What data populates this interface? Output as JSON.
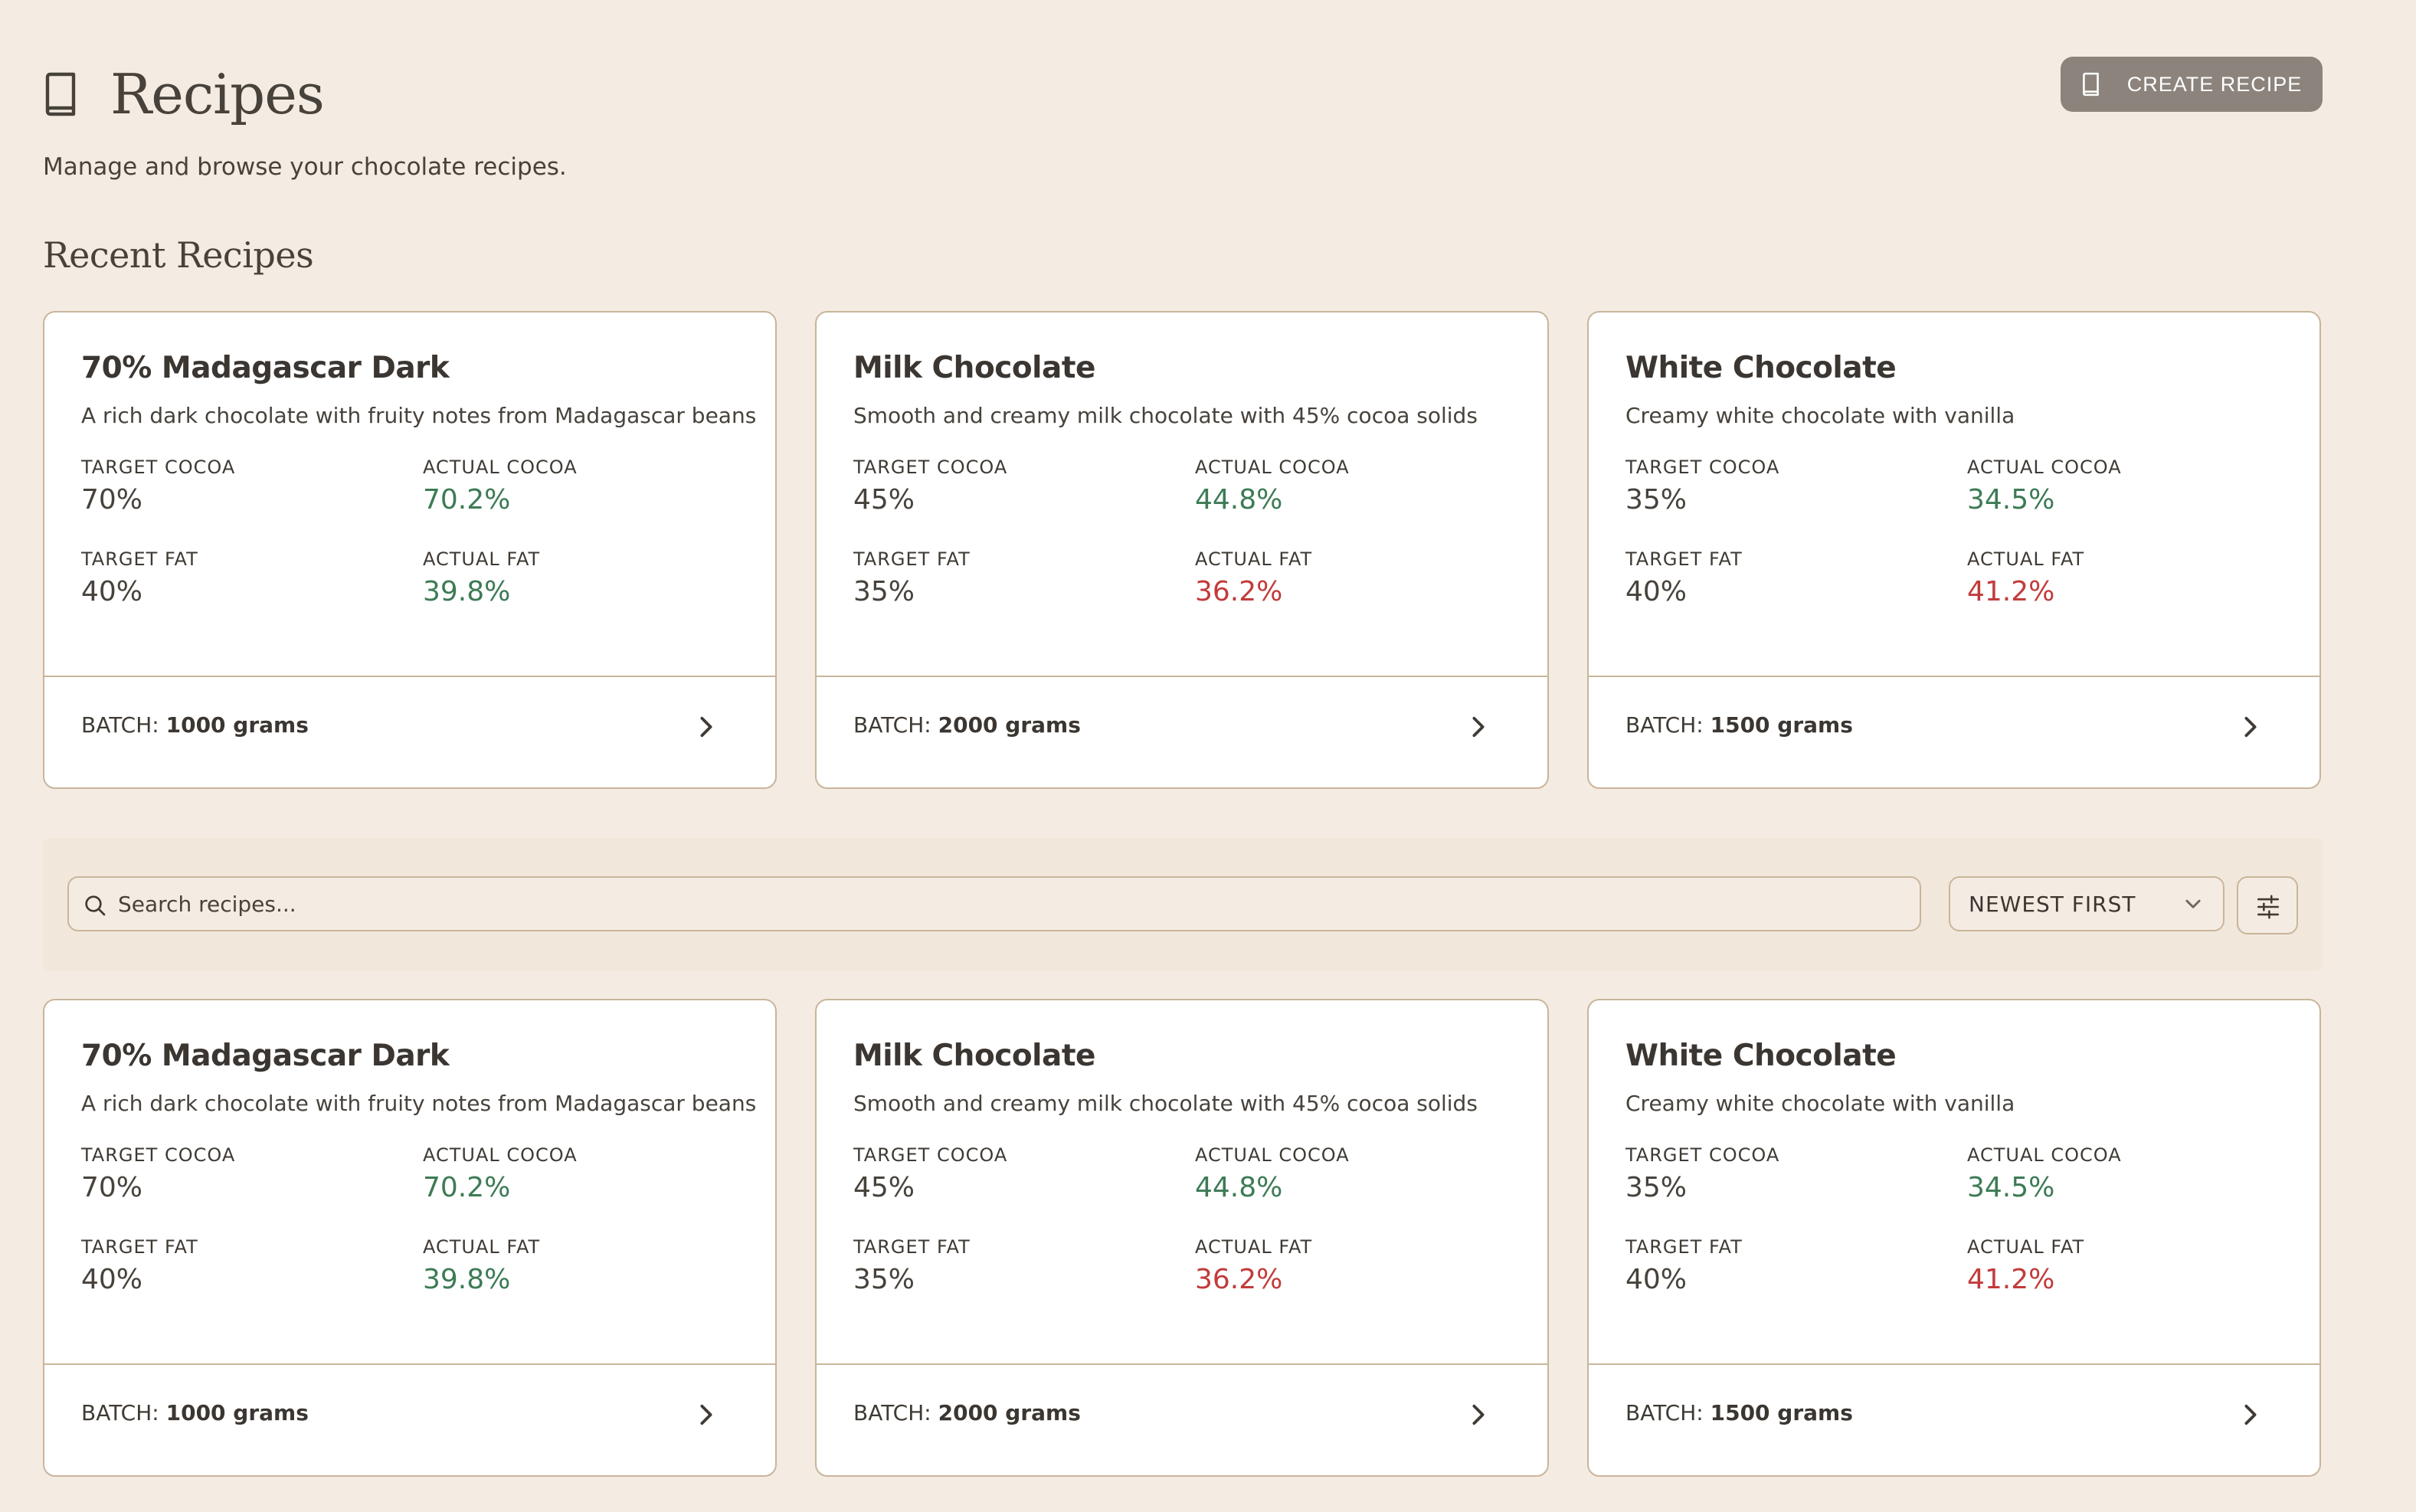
{
  "header": {
    "title": "Recipes",
    "create_button_label": "CREATE RECIPE",
    "subtitle": "Manage and browse your chocolate recipes."
  },
  "recent": {
    "section_title": "Recent Recipes",
    "cards": [
      {
        "name": "70% Madagascar Dark",
        "description": "A rich dark chocolate with fruity notes from Madagascar beans",
        "target_cocoa_label": "TARGET COCOA",
        "target_cocoa": "70%",
        "actual_cocoa_label": "ACTUAL COCOA",
        "actual_cocoa": "70.2%",
        "target_fat_label": "TARGET FAT",
        "target_fat": "40%",
        "actual_fat_label": "ACTUAL FAT",
        "actual_fat": "39.8%",
        "batch_label": "BATCH:",
        "batch_value": "1000 grams"
      },
      {
        "name": "Milk Chocolate",
        "description": "Smooth and creamy milk chocolate with 45% cocoa solids",
        "target_cocoa_label": "TARGET COCOA",
        "target_cocoa": "45%",
        "actual_cocoa_label": "ACTUAL COCOA",
        "actual_cocoa": "44.8%",
        "target_fat_label": "TARGET FAT",
        "target_fat": "35%",
        "actual_fat_label": "ACTUAL FAT",
        "actual_fat": "36.2%",
        "batch_label": "BATCH:",
        "batch_value": "2000 grams"
      },
      {
        "name": "White Chocolate",
        "description": "Creamy white chocolate with vanilla",
        "target_cocoa_label": "TARGET COCOA",
        "target_cocoa": "35%",
        "actual_cocoa_label": "ACTUAL COCOA",
        "actual_cocoa": "34.5%",
        "target_fat_label": "TARGET FAT",
        "target_fat": "40%",
        "actual_fat_label": "ACTUAL FAT",
        "actual_fat": "41.2%",
        "batch_label": "BATCH:",
        "batch_value": "1500 grams"
      }
    ]
  },
  "toolbar": {
    "search_placeholder": "Search recipes...",
    "search_value": "",
    "sort_selected": "NEWEST FIRST"
  },
  "all": {
    "cards": [
      {
        "name": "70% Madagascar Dark",
        "description": "A rich dark chocolate with fruity notes from Madagascar beans",
        "target_cocoa_label": "TARGET COCOA",
        "target_cocoa": "70%",
        "actual_cocoa_label": "ACTUAL COCOA",
        "actual_cocoa": "70.2%",
        "target_fat_label": "TARGET FAT",
        "target_fat": "40%",
        "actual_fat_label": "ACTUAL FAT",
        "actual_fat": "39.8%",
        "batch_label": "BATCH:",
        "batch_value": "1000 grams"
      },
      {
        "name": "Milk Chocolate",
        "description": "Smooth and creamy milk chocolate with 45% cocoa solids",
        "target_cocoa_label": "TARGET COCOA",
        "target_cocoa": "45%",
        "actual_cocoa_label": "ACTUAL COCOA",
        "actual_cocoa": "44.8%",
        "target_fat_label": "TARGET FAT",
        "target_fat": "35%",
        "actual_fat_label": "ACTUAL FAT",
        "actual_fat": "36.2%",
        "batch_label": "BATCH:",
        "batch_value": "2000 grams"
      },
      {
        "name": "White Chocolate",
        "description": "Creamy white chocolate with vanilla",
        "target_cocoa_label": "TARGET COCOA",
        "target_cocoa": "35%",
        "actual_cocoa_label": "ACTUAL COCOA",
        "actual_cocoa": "34.5%",
        "target_fat_label": "TARGET FAT",
        "target_fat": "40%",
        "actual_fat_label": "ACTUAL FAT",
        "actual_fat": "41.2%",
        "batch_label": "BATCH:",
        "batch_value": "1500 grams"
      }
    ]
  },
  "icons": {
    "title": "book-icon",
    "create": "book-icon",
    "search": "search-icon",
    "sort": "chevron-down-icon",
    "filter": "sliders-icon",
    "card_link": "chevron-right-icon"
  },
  "colors": {
    "background": "#f4ece2",
    "card_border": "#c9b59b",
    "button": "#8c847c",
    "value_good": "#3d7b55",
    "value_bad": "#c23b3b"
  }
}
